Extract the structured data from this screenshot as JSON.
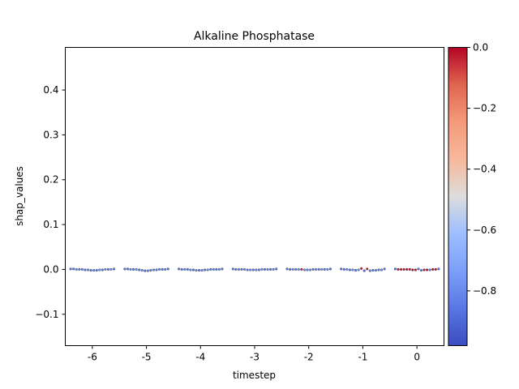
{
  "chart_data": {
    "type": "scatter",
    "title": "Alkaline Phosphatase",
    "xlabel": "timestep",
    "ylabel": "shap_values",
    "xlim": [
      -6.5,
      0.5
    ],
    "ylim": [
      -0.17,
      0.495
    ],
    "x_ticks": [
      -6,
      -5,
      -4,
      -3,
      -2,
      -1,
      0
    ],
    "x_tick_labels": [
      "-6",
      "-5",
      "-4",
      "-3",
      "-2",
      "-1",
      "0"
    ],
    "y_ticks": [
      -0.1,
      0.0,
      0.1,
      0.2,
      0.3,
      0.4
    ],
    "y_tick_labels": [
      "−0.1",
      "0.0",
      "0.1",
      "0.2",
      "0.3",
      "0.4"
    ],
    "grid": false,
    "colormap": "coolwarm",
    "colorbar": {
      "min": -0.98,
      "max": 0.0,
      "ticks": [
        0.0,
        -0.2,
        -0.4,
        -0.6,
        -0.8
      ],
      "tick_labels": [
        "0.0",
        "−0.2",
        "−0.4",
        "−0.6",
        "−0.8"
      ]
    },
    "clusters": [
      {
        "timestep": -6,
        "values": [
          0.001,
          0.001,
          0.0,
          0.0,
          0.0,
          -0.001,
          -0.001,
          -0.002,
          -0.002,
          -0.002,
          -0.001,
          -0.001,
          0.0,
          0.0,
          0.0,
          0.001
        ],
        "colors": [
          -0.85,
          -0.85,
          -0.8,
          -0.85,
          -0.8,
          -0.85,
          -0.8,
          -0.85,
          -0.8,
          -0.85,
          -0.8,
          -0.85,
          -0.8,
          -0.85,
          -0.8,
          -0.85
        ]
      },
      {
        "timestep": -5,
        "values": [
          0.001,
          0.001,
          0.0,
          0.0,
          0.0,
          -0.001,
          -0.002,
          -0.003,
          -0.003,
          -0.002,
          -0.001,
          -0.001,
          0.0,
          0.0,
          0.0,
          0.001
        ],
        "colors": [
          -0.85,
          -0.85,
          -0.8,
          -0.85,
          -0.8,
          -0.85,
          -0.8,
          -0.85,
          -0.8,
          -0.85,
          -0.8,
          -0.85,
          -0.8,
          -0.85,
          -0.8,
          -0.85
        ]
      },
      {
        "timestep": -4,
        "values": [
          0.001,
          0.0,
          0.0,
          0.0,
          -0.001,
          -0.001,
          -0.002,
          -0.002,
          -0.002,
          -0.001,
          -0.001,
          0.0,
          0.0,
          0.0,
          0.0,
          0.001
        ],
        "colors": [
          -0.85,
          -0.85,
          -0.8,
          -0.85,
          -0.8,
          -0.85,
          -0.8,
          -0.85,
          -0.8,
          -0.85,
          -0.8,
          -0.85,
          -0.8,
          -0.85,
          -0.8,
          -0.85
        ]
      },
      {
        "timestep": -3,
        "values": [
          0.001,
          0.0,
          0.0,
          0.0,
          0.0,
          -0.001,
          -0.001,
          -0.001,
          -0.001,
          -0.001,
          0.0,
          0.0,
          0.0,
          0.0,
          0.0,
          0.001
        ],
        "colors": [
          -0.85,
          -0.85,
          -0.8,
          -0.85,
          -0.8,
          -0.85,
          -0.8,
          -0.85,
          -0.8,
          -0.85,
          -0.8,
          -0.85,
          -0.8,
          -0.85,
          -0.8,
          -0.85
        ]
      },
      {
        "timestep": -2,
        "values": [
          0.001,
          0.0,
          0.0,
          0.0,
          0.0,
          0.0,
          -0.001,
          -0.001,
          -0.001,
          0.0,
          0.0,
          0.0,
          0.0,
          0.0,
          0.0,
          0.001
        ],
        "colors": [
          -0.85,
          -0.85,
          -0.8,
          -0.85,
          -0.8,
          -0.05,
          -0.8,
          -0.85,
          -0.8,
          -0.85,
          -0.8,
          -0.85,
          -0.8,
          -0.85,
          -0.8,
          -0.85
        ]
      },
      {
        "timestep": -1,
        "values": [
          0.001,
          0.0,
          0.0,
          -0.001,
          -0.001,
          -0.002,
          -0.001,
          0.002,
          -0.003,
          0.001,
          -0.003,
          -0.002,
          -0.002,
          -0.001,
          -0.001,
          0.001
        ],
        "colors": [
          -0.85,
          -0.85,
          -0.8,
          -0.85,
          -0.8,
          -0.85,
          -0.8,
          -0.05,
          -0.85,
          -0.05,
          -0.8,
          -0.85,
          -0.8,
          -0.85,
          -0.8,
          -0.85
        ]
      },
      {
        "timestep": 0,
        "values": [
          0.001,
          0.0,
          0.0,
          0.0,
          0.0,
          0.0,
          -0.001,
          -0.001,
          0.001,
          -0.002,
          -0.001,
          -0.001,
          -0.001,
          0.0,
          0.0,
          0.001
        ],
        "colors": [
          -0.85,
          -0.02,
          -0.02,
          -0.02,
          -0.02,
          -0.02,
          -0.02,
          -0.02,
          -0.85,
          -0.85,
          -0.02,
          -0.02,
          -0.85,
          -0.02,
          -0.02,
          -0.85
        ]
      }
    ]
  }
}
